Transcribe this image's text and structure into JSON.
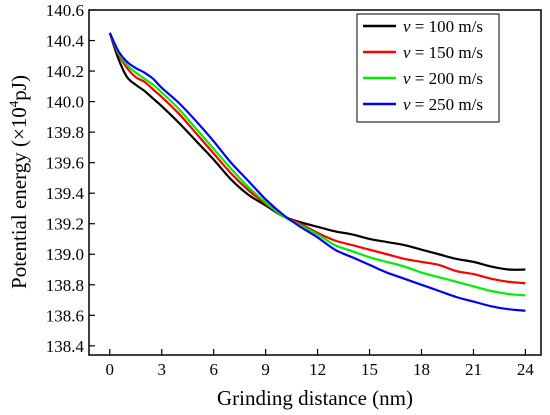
{
  "chart_data": {
    "type": "line",
    "xlabel": "Grinding distance (nm)",
    "ylabel": {
      "prefix": "Potential energy (×10",
      "sup": "4",
      "suffix": "pJ)"
    },
    "xlim": [
      -1.2,
      24.9
    ],
    "ylim": [
      138.34,
      140.6
    ],
    "x_ticks": [
      0,
      3,
      6,
      9,
      12,
      15,
      18,
      21,
      24
    ],
    "x_tick_labels": [
      "0",
      "3",
      "6",
      "9",
      "12",
      "15",
      "18",
      "21",
      "24"
    ],
    "y_ticks": [
      138.4,
      138.6,
      138.8,
      139.0,
      139.2,
      139.4,
      139.6,
      139.8,
      140.0,
      140.2,
      140.4,
      140.6
    ],
    "y_tick_labels": [
      "138.4",
      "138.6",
      "138.8",
      "139.0",
      "139.2",
      "139.4",
      "139.6",
      "139.8",
      "140.0",
      "140.2",
      "140.4",
      "140.6"
    ],
    "grid": false,
    "legend_position": "top-right",
    "x": [
      0,
      0.5,
      1,
      1.5,
      2,
      2.5,
      3,
      4,
      5,
      6,
      7,
      8,
      9,
      10,
      11,
      12,
      13,
      14,
      15,
      16,
      17,
      18,
      19,
      20,
      21,
      22,
      23,
      24
    ],
    "series": [
      {
        "legend_var": "v",
        "legend_value": " = 100 m/s",
        "color": "#000000",
        "values": [
          140.45,
          140.28,
          140.16,
          140.11,
          140.07,
          140.02,
          139.97,
          139.86,
          139.74,
          139.62,
          139.49,
          139.39,
          139.32,
          139.25,
          139.21,
          139.18,
          139.15,
          139.13,
          139.1,
          139.08,
          139.06,
          139.03,
          139.0,
          138.97,
          138.95,
          138.92,
          138.9,
          138.9
        ]
      },
      {
        "legend_var": "v",
        "legend_value": " = 150 m/s",
        "color": "#ff0000",
        "values": [
          140.45,
          140.31,
          140.22,
          140.16,
          140.13,
          140.08,
          140.03,
          139.92,
          139.79,
          139.66,
          139.53,
          139.42,
          139.33,
          139.25,
          139.2,
          139.14,
          139.09,
          139.06,
          139.03,
          139.0,
          138.97,
          138.95,
          138.93,
          138.89,
          138.87,
          138.84,
          138.82,
          138.81
        ]
      },
      {
        "legend_var": "v",
        "legend_value": " = 200 m/s",
        "color": "#00ee00",
        "values": [
          140.45,
          140.32,
          140.24,
          140.19,
          140.15,
          140.11,
          140.06,
          139.95,
          139.82,
          139.69,
          139.56,
          139.44,
          139.34,
          139.25,
          139.19,
          139.13,
          139.06,
          139.02,
          138.98,
          138.95,
          138.92,
          138.88,
          138.85,
          138.82,
          138.79,
          138.76,
          138.74,
          138.73
        ]
      },
      {
        "legend_var": "v",
        "legend_value": " = 250 m/s",
        "color": "#0000ff",
        "values": [
          140.45,
          140.33,
          140.26,
          140.22,
          140.19,
          140.15,
          140.09,
          139.99,
          139.87,
          139.74,
          139.6,
          139.48,
          139.36,
          139.26,
          139.18,
          139.11,
          139.03,
          138.98,
          138.93,
          138.88,
          138.84,
          138.8,
          138.76,
          138.72,
          138.69,
          138.66,
          138.64,
          138.63
        ]
      }
    ]
  }
}
